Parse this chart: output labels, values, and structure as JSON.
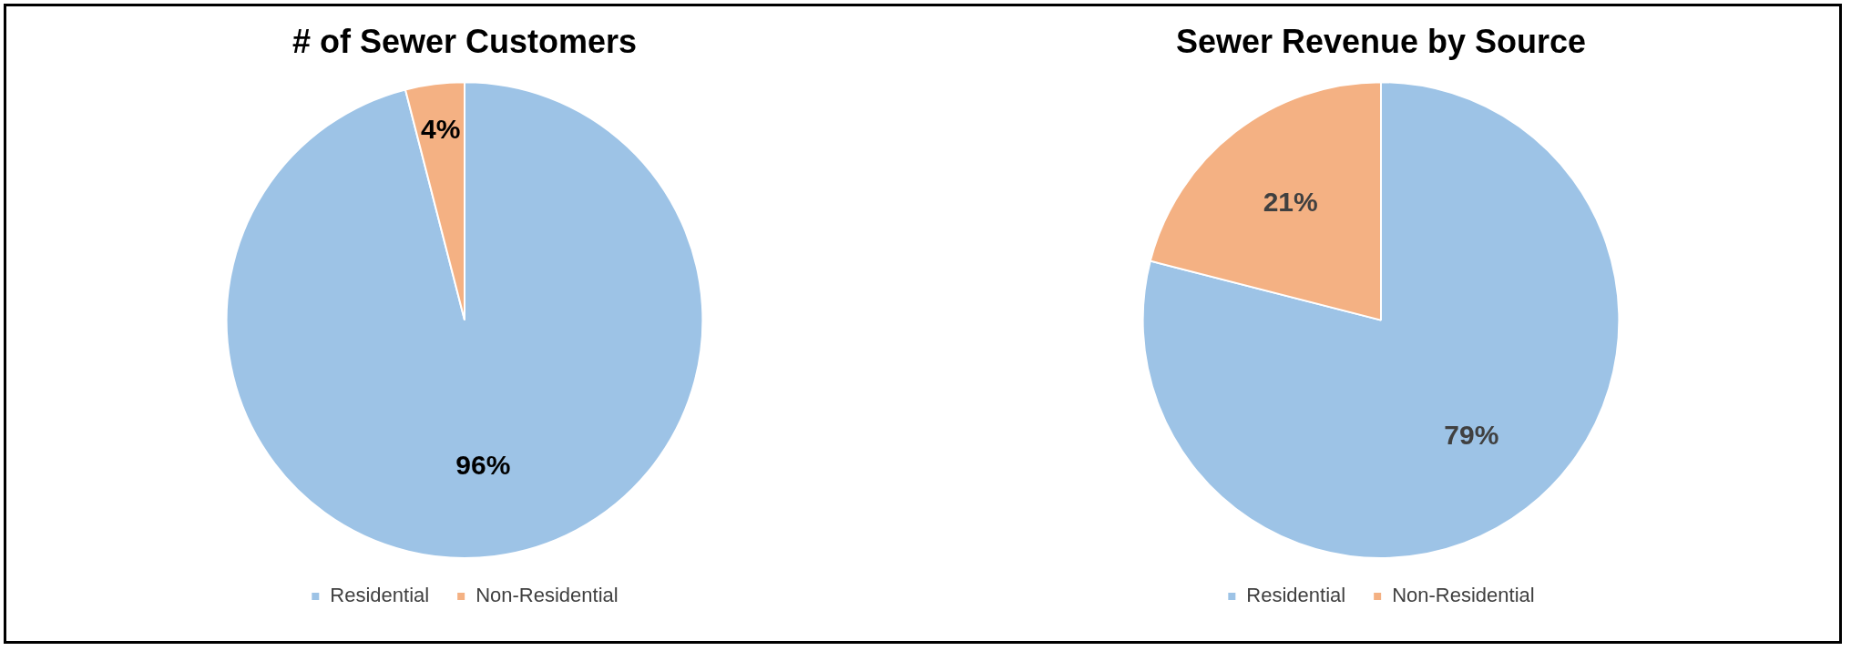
{
  "chart_data": [
    {
      "type": "pie",
      "title": "# of Sewer Customers",
      "categories": [
        "Residential",
        "Non-Residential"
      ],
      "values": [
        96,
        4
      ],
      "colors": [
        "#9dc3e6",
        "#f4b183"
      ],
      "value_labels": [
        "96%",
        "4%"
      ],
      "legend": "bottom"
    },
    {
      "type": "pie",
      "title": "Sewer Revenue by Source",
      "categories": [
        "Residential",
        "Non-Residential"
      ],
      "values": [
        79,
        21
      ],
      "colors": [
        "#9dc3e6",
        "#f4b183"
      ],
      "value_labels": [
        "79%",
        "21%"
      ],
      "legend": "bottom"
    }
  ]
}
